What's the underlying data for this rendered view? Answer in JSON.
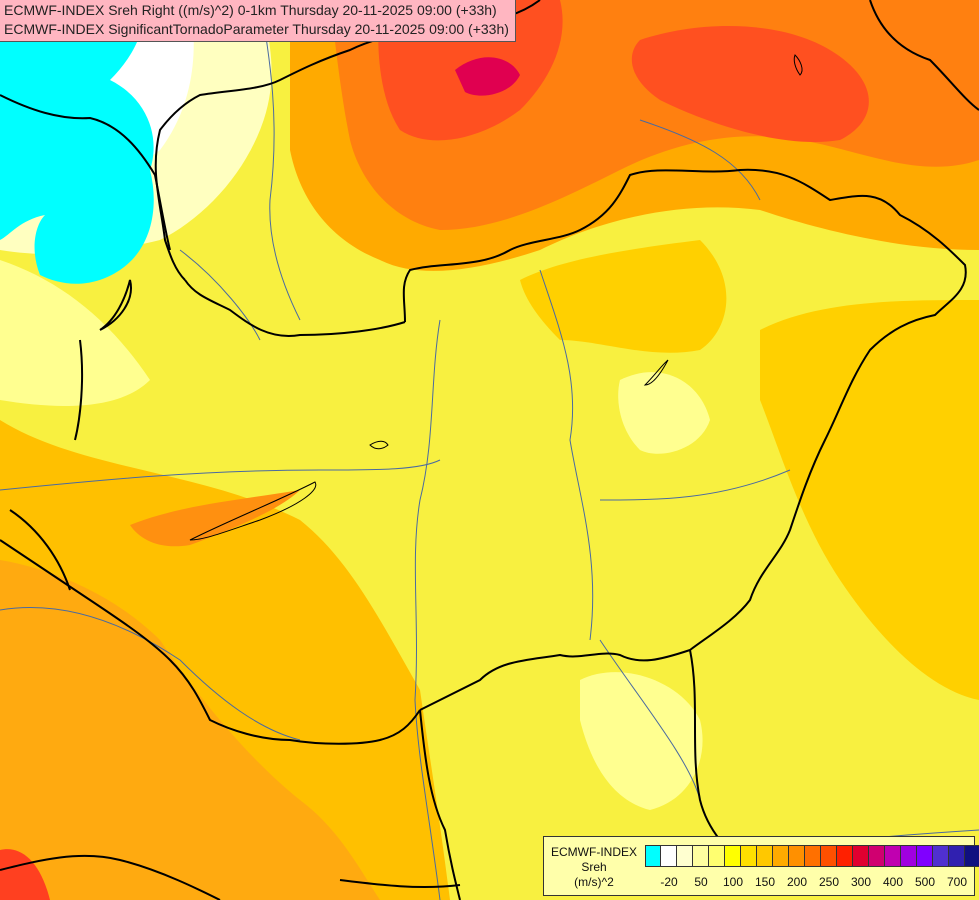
{
  "header": {
    "line1": "ECMWF-INDEX Sreh Right ((m/s)^2) 0-1km Thursday 20-11-2025 09:00 (+33h)",
    "line2": "ECMWF-INDEX SignificantTornadoParameter Thursday 20-11-2025 09:00 (+33h)"
  },
  "legend": {
    "title1": "ECMWF-INDEX",
    "title2": "Sreh",
    "title3": "(m/s)^2",
    "colors": [
      "#00ffff",
      "#ffffff",
      "#ffffd0",
      "#ffffa0",
      "#ffff70",
      "#ffff00",
      "#ffe000",
      "#ffc800",
      "#ffaa00",
      "#ff9000",
      "#ff7000",
      "#ff5000",
      "#ff2000",
      "#e00030",
      "#d00070",
      "#c000b0",
      "#a000e0",
      "#8000ff",
      "#5030d0",
      "#3020b0",
      "#101080"
    ],
    "ticks": [
      "-20",
      "50",
      "100",
      "150",
      "200",
      "250",
      "300",
      "400",
      "500",
      "700"
    ]
  },
  "colors": {
    "cyan": "#00ffff",
    "white": "#ffffff",
    "paleYellow": "#ffffc0",
    "yellow": "#ffff30",
    "gold": "#ffd000",
    "orange": "#ffaa00",
    "darkOrange": "#ff7010",
    "red": "#ff2020",
    "crimson": "#e00050",
    "border": "#000000",
    "river": "#4a6aa0"
  }
}
